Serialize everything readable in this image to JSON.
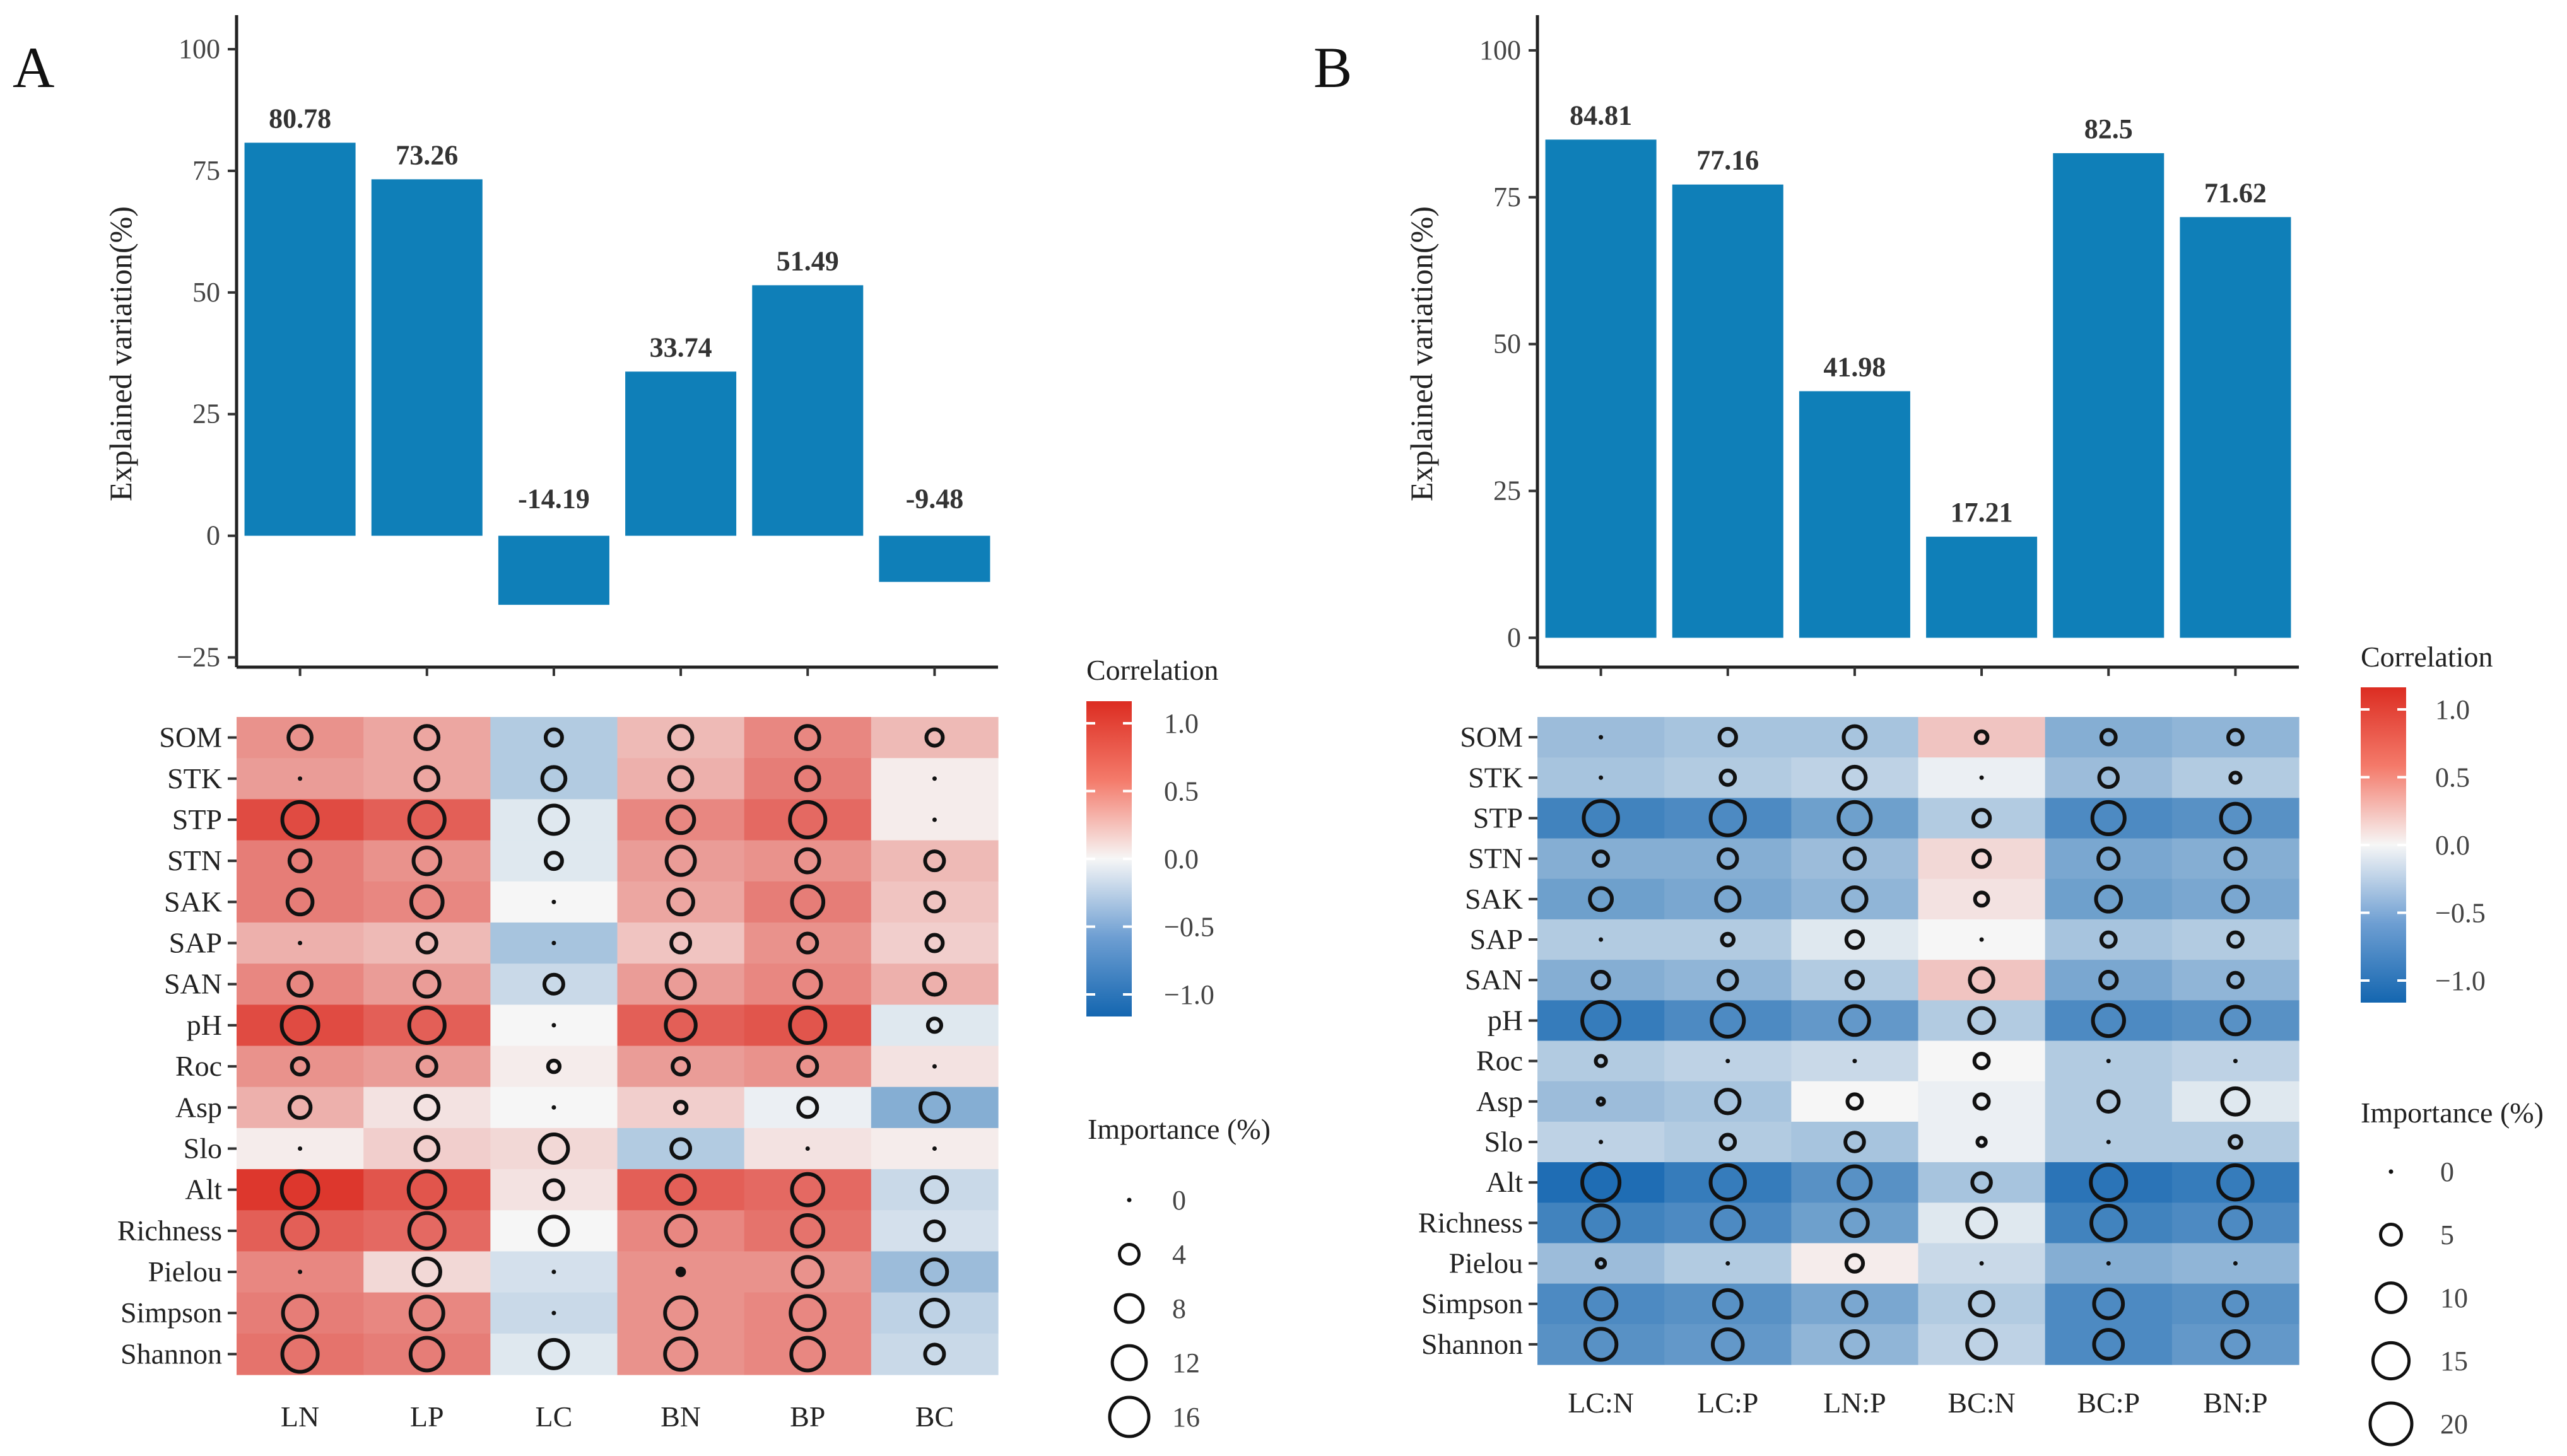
{
  "chart_data": [
    {
      "panel_label": "A",
      "type": "bar",
      "ylabel": "Explained variation(%)",
      "ylim": [
        -27,
        107
      ],
      "yticks": [
        -25,
        0,
        25,
        50,
        75,
        100
      ],
      "ytick_labels": [
        "−25",
        "0",
        "25",
        "50",
        "75",
        "100"
      ],
      "categories": [
        "LN",
        "LP",
        "LC",
        "BN",
        "BP",
        "BC"
      ],
      "values": [
        80.78,
        73.26,
        -14.19,
        33.74,
        51.49,
        -9.48
      ],
      "value_labels": [
        "80.78",
        "73.26",
        "-14.19",
        "33.74",
        "51.49",
        "-9.48"
      ],
      "bar_color": "#0f7fb8",
      "heatmap": {
        "rows": [
          "SOM",
          "STK",
          "STP",
          "STN",
          "SAK",
          "SAP",
          "SAN",
          "pH",
          "Roc",
          "Asp",
          "Slo",
          "Alt",
          "Richness",
          "Pielou",
          "Simpson",
          "Shannon"
        ],
        "columns": [
          "LN",
          "LP",
          "LC",
          "BN",
          "BP",
          "BC"
        ],
        "correlation": [
          [
            0.5,
            0.4,
            -0.3,
            0.3,
            0.55,
            0.3
          ],
          [
            0.45,
            0.4,
            -0.3,
            0.35,
            0.6,
            0.05
          ],
          [
            0.85,
            0.75,
            -0.1,
            0.55,
            0.7,
            0.05
          ],
          [
            0.6,
            0.5,
            -0.1,
            0.45,
            0.5,
            0.3
          ],
          [
            0.6,
            0.55,
            0.0,
            0.4,
            0.6,
            0.25
          ],
          [
            0.35,
            0.3,
            -0.35,
            0.25,
            0.5,
            0.2
          ],
          [
            0.55,
            0.45,
            -0.2,
            0.45,
            0.55,
            0.35
          ],
          [
            0.85,
            0.75,
            0.0,
            0.75,
            0.8,
            -0.1
          ],
          [
            0.5,
            0.45,
            0.05,
            0.45,
            0.5,
            0.1
          ],
          [
            0.35,
            0.1,
            0.0,
            0.2,
            -0.05,
            -0.5
          ],
          [
            0.05,
            0.2,
            0.15,
            -0.3,
            0.1,
            0.05
          ],
          [
            0.95,
            0.8,
            0.1,
            0.75,
            0.7,
            -0.2
          ],
          [
            0.75,
            0.7,
            0.0,
            0.55,
            0.65,
            -0.15
          ],
          [
            0.55,
            0.15,
            -0.15,
            0.5,
            0.5,
            -0.4
          ],
          [
            0.6,
            0.55,
            -0.2,
            0.5,
            0.55,
            -0.25
          ],
          [
            0.65,
            0.6,
            -0.1,
            0.5,
            0.55,
            -0.2
          ]
        ],
        "importance": [
          [
            6,
            6,
            3,
            6,
            6,
            3
          ],
          [
            0,
            6,
            6,
            6,
            6,
            0
          ],
          [
            14,
            14,
            9,
            8,
            14,
            0
          ],
          [
            5,
            8,
            3,
            9,
            6,
            4
          ],
          [
            7,
            11,
            0,
            7,
            11,
            4
          ],
          [
            0,
            4,
            0,
            4,
            4,
            3
          ],
          [
            6,
            7,
            4,
            9,
            8,
            5
          ],
          [
            15,
            14,
            0,
            10,
            14,
            2
          ],
          [
            3,
            4,
            1.5,
            3,
            4,
            0
          ],
          [
            5,
            6,
            0,
            1.5,
            4,
            9
          ],
          [
            0,
            6,
            9,
            4,
            0,
            0
          ],
          [
            15,
            15,
            4,
            9,
            11,
            7
          ],
          [
            14,
            14,
            9,
            10,
            11,
            4
          ],
          [
            0,
            8,
            0,
            0.5,
            10,
            7
          ],
          [
            13,
            12,
            0,
            11,
            13,
            8
          ],
          [
            14,
            12,
            9,
            11,
            12,
            4
          ]
        ],
        "filled_dot": [
          [
            13,
            3
          ]
        ]
      },
      "correlation_legend": {
        "title": "Correlation",
        "labels": [
          "1.0",
          "0.5",
          "0.0",
          "−0.5",
          "−1.0"
        ]
      },
      "importance_legend": {
        "title": "Importance (%)",
        "values": [
          0,
          4,
          8,
          12,
          16
        ],
        "labels": [
          "0",
          "4",
          "8",
          "12",
          "16"
        ]
      }
    },
    {
      "panel_label": "B",
      "type": "bar",
      "ylabel": "Explained variation(%)",
      "ylim": [
        -5,
        106
      ],
      "yticks": [
        0,
        25,
        50,
        75,
        100
      ],
      "ytick_labels": [
        "0",
        "25",
        "50",
        "75",
        "100"
      ],
      "categories": [
        "LC:N",
        "LC:P",
        "LN:P",
        "BC:N",
        "BC:P",
        "BN:P"
      ],
      "values": [
        84.81,
        77.16,
        41.98,
        17.21,
        82.5,
        71.62
      ],
      "value_labels": [
        "84.81",
        "77.16",
        "41.98",
        "17.21",
        "82.5",
        "71.62"
      ],
      "bar_color": "#0f7fb8",
      "heatmap": {
        "rows": [
          "SOM",
          "STK",
          "STP",
          "STN",
          "SAK",
          "SAP",
          "SAN",
          "pH",
          "Roc",
          "Asp",
          "Slo",
          "Alt",
          "Richness",
          "Pielou",
          "Simpson",
          "Shannon"
        ],
        "columns": [
          "LC:N",
          "LC:P",
          "LN:P",
          "BC:N",
          "BC:P",
          "BN:P"
        ],
        "correlation": [
          [
            -0.4,
            -0.35,
            -0.35,
            0.25,
            -0.5,
            -0.45
          ],
          [
            -0.35,
            -0.3,
            -0.25,
            -0.05,
            -0.4,
            -0.3
          ],
          [
            -0.8,
            -0.75,
            -0.6,
            -0.3,
            -0.75,
            -0.7
          ],
          [
            -0.5,
            -0.5,
            -0.4,
            0.15,
            -0.55,
            -0.5
          ],
          [
            -0.6,
            -0.55,
            -0.45,
            0.1,
            -0.6,
            -0.55
          ],
          [
            -0.3,
            -0.3,
            -0.1,
            0.0,
            -0.35,
            -0.3
          ],
          [
            -0.5,
            -0.45,
            -0.3,
            0.25,
            -0.55,
            -0.45
          ],
          [
            -0.85,
            -0.75,
            -0.65,
            -0.3,
            -0.75,
            -0.7
          ],
          [
            -0.3,
            -0.25,
            -0.2,
            0.0,
            -0.3,
            -0.25
          ],
          [
            -0.4,
            -0.35,
            0.0,
            -0.05,
            -0.3,
            -0.1
          ],
          [
            -0.25,
            -0.3,
            -0.35,
            -0.05,
            -0.3,
            -0.3
          ],
          [
            -0.95,
            -0.85,
            -0.7,
            -0.35,
            -0.9,
            -0.85
          ],
          [
            -0.8,
            -0.75,
            -0.6,
            -0.1,
            -0.8,
            -0.75
          ],
          [
            -0.4,
            -0.3,
            0.05,
            -0.2,
            -0.5,
            -0.45
          ],
          [
            -0.75,
            -0.7,
            -0.55,
            -0.3,
            -0.75,
            -0.7
          ],
          [
            -0.7,
            -0.65,
            -0.45,
            -0.25,
            -0.75,
            -0.65
          ]
        ],
        "importance": [
          [
            0,
            4,
            7,
            2,
            3,
            3
          ],
          [
            0,
            3,
            7,
            0,
            5,
            1.5
          ],
          [
            17,
            17,
            15,
            4,
            15,
            12
          ],
          [
            3,
            5,
            6,
            4,
            6,
            6
          ],
          [
            7,
            8,
            8,
            2.5,
            9,
            9
          ],
          [
            0,
            2,
            4,
            0,
            3,
            3
          ],
          [
            4,
            5,
            4,
            8,
            4,
            3
          ],
          [
            20,
            15,
            12,
            9,
            14,
            11
          ],
          [
            1.5,
            0,
            0,
            3,
            0,
            0
          ],
          [
            0.5,
            8,
            3,
            3,
            6,
            10
          ],
          [
            0,
            3,
            5,
            1,
            0,
            2
          ],
          [
            20,
            17,
            15,
            5,
            18,
            17
          ],
          [
            18,
            15,
            10,
            12,
            17,
            14
          ],
          [
            1,
            0,
            4,
            0,
            0,
            0
          ],
          [
            14,
            11,
            8,
            8,
            12,
            8
          ],
          [
            14,
            13,
            10,
            12,
            12,
            10
          ]
        ],
        "filled_dot": []
      },
      "correlation_legend": {
        "title": "Correlation",
        "labels": [
          "1.0",
          "0.5",
          "0.0",
          "−0.5",
          "−1.0"
        ]
      },
      "importance_legend": {
        "title": "Importance (%)",
        "values": [
          0,
          5,
          10,
          15,
          20
        ],
        "labels": [
          "0",
          "5",
          "10",
          "15",
          "20"
        ]
      }
    }
  ]
}
